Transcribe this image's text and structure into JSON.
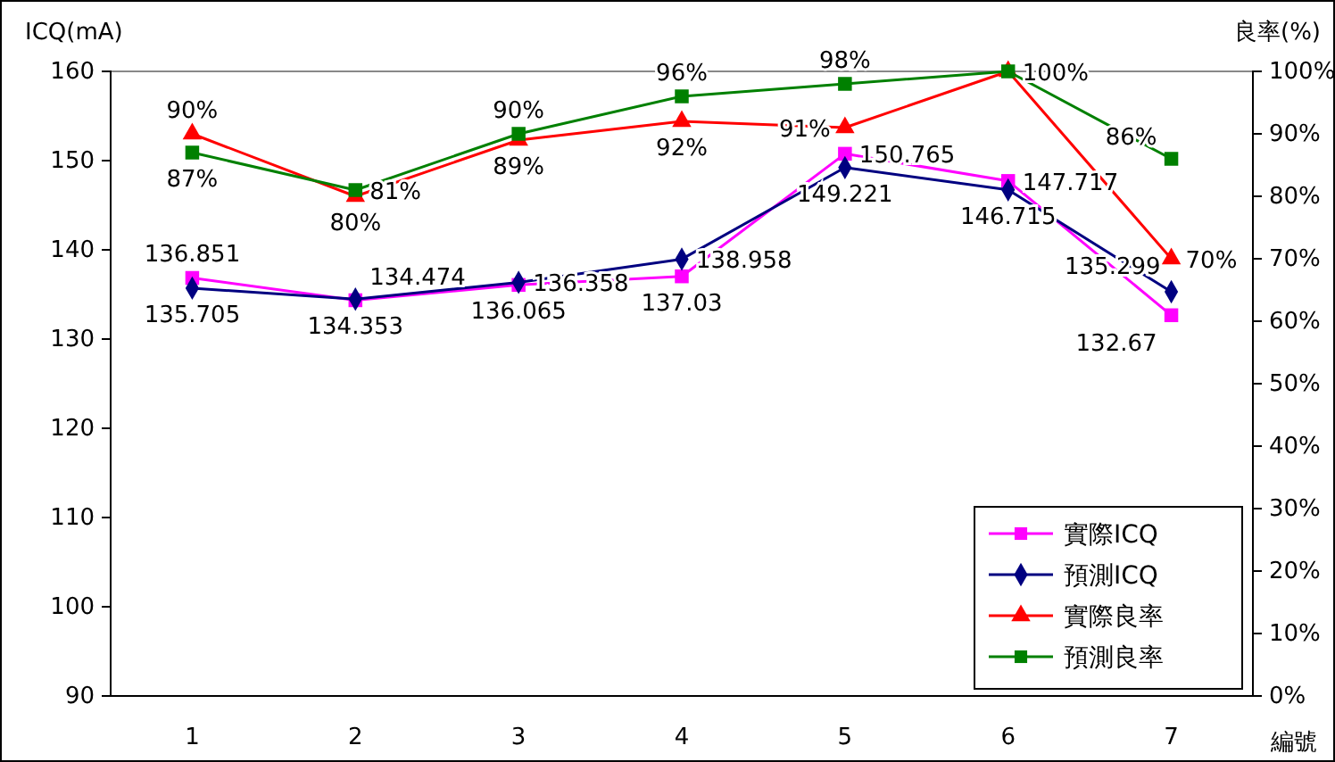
{
  "chart_data": {
    "type": "line",
    "xlabel": "編號",
    "ylabel": "ICQ(mA)",
    "y2label": "良率(%)",
    "categories": [
      "1",
      "2",
      "3",
      "4",
      "5",
      "6",
      "7"
    ],
    "ylim": [
      90,
      160
    ],
    "yticks": [
      90,
      100,
      110,
      120,
      130,
      140,
      150,
      160
    ],
    "y2lim": [
      0,
      100
    ],
    "y2ticks": [
      {
        "value": 0,
        "label": "0%"
      },
      {
        "value": 10,
        "label": "10%"
      },
      {
        "value": 20,
        "label": "20%"
      },
      {
        "value": 30,
        "label": "30%"
      },
      {
        "value": 40,
        "label": "40%"
      },
      {
        "value": 50,
        "label": "50%"
      },
      {
        "value": 60,
        "label": "60%"
      },
      {
        "value": 70,
        "label": "70%"
      },
      {
        "value": 80,
        "label": "80%"
      },
      {
        "value": 90,
        "label": "90%"
      },
      {
        "value": 100,
        "label": "100%"
      }
    ],
    "legend": "bottom right",
    "grid": false,
    "series": [
      {
        "name": "實際ICQ",
        "color": "#ff00ff",
        "marker": "square",
        "values": [
          136.851,
          134.353,
          136.065,
          137.03,
          150.765,
          147.717,
          132.67
        ],
        "value_labels": [
          "136.851",
          "134.353",
          "136.065",
          "137.03",
          "150.765",
          "147.717",
          "132.67"
        ]
      },
      {
        "name": "預測ICQ",
        "color": "#000080",
        "marker": "diamond",
        "values": [
          135.705,
          134.474,
          136.358,
          138.958,
          149.221,
          146.715,
          135.299
        ],
        "value_labels": [
          "135.705",
          "134.474",
          "136.358",
          "138.958",
          "149.221",
          "146.715",
          "135.299"
        ]
      },
      {
        "name": "實際良率",
        "color": "#ff0000",
        "marker": "triangle",
        "axis": "y2",
        "values": [
          90,
          80,
          89,
          92,
          91,
          100,
          70
        ],
        "value_labels": [
          "90%",
          "80%",
          "89%",
          "92%",
          "91%",
          null,
          "70%"
        ]
      },
      {
        "name": "預測良率",
        "color": "#008000",
        "marker": "square",
        "axis": "y2",
        "values": [
          87,
          81,
          90,
          96,
          98,
          100,
          86
        ],
        "value_labels": [
          "87%",
          "81%",
          "90%",
          "96%",
          "98%",
          "100%",
          "86%"
        ]
      }
    ]
  }
}
